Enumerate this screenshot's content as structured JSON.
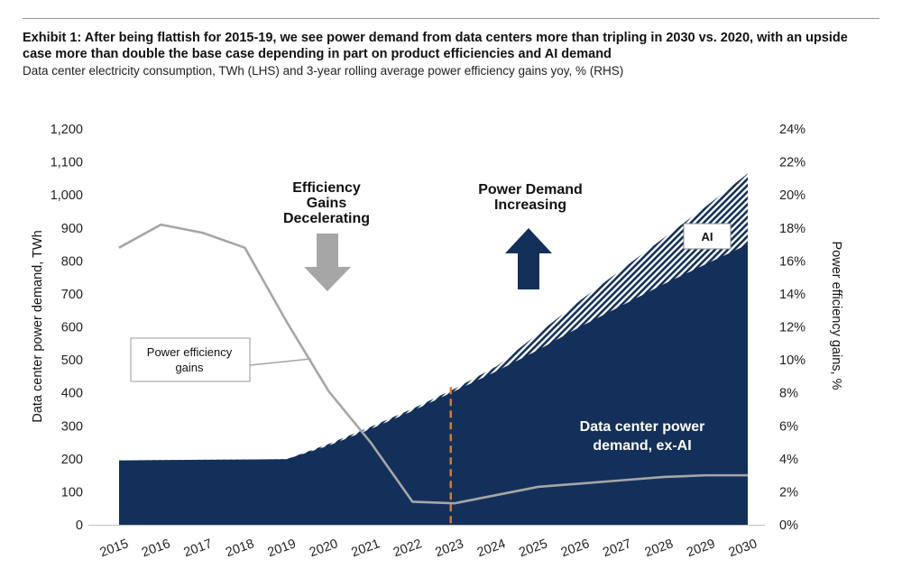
{
  "header": {
    "title": "Exhibit 1: After being flattish for 2015-19, we see power demand from data centers more than tripling in 2030 vs. 2020, with an upside case more than double the base case depending in part on product efficiencies and AI demand",
    "subtitle": "Data center electricity consumption, TWh (LHS) and 3-year rolling average power efficiency gains yoy, % (RHS)"
  },
  "colors": {
    "navy": "#13305a",
    "efficiency_line": "#a6a6a6",
    "arrow_down": "#a6a6a6",
    "arrow_up": "#13305a",
    "divider": "#e07b2a"
  },
  "chart_data": {
    "type": "area",
    "title": "Exhibit 1",
    "categories": [
      "2015",
      "2016",
      "2017",
      "2018",
      "2019",
      "2020",
      "2021",
      "2022",
      "2023",
      "2024",
      "2025",
      "2026",
      "2027",
      "2028",
      "2029",
      "2030"
    ],
    "ylabel": "Data center power demand, TWh",
    "y2label": "Power efficiency gains, %",
    "ylim": [
      0,
      1200
    ],
    "yticks": [
      0,
      100,
      200,
      300,
      400,
      500,
      600,
      700,
      800,
      900,
      1000,
      1100,
      1200
    ],
    "ytick_labels": [
      "0",
      "100",
      "200",
      "300",
      "400",
      "500",
      "600",
      "700",
      "800",
      "900",
      "1,000",
      "1,100",
      "1,200"
    ],
    "y2lim": [
      0,
      24
    ],
    "y2ticks": [
      0,
      2,
      4,
      6,
      8,
      10,
      12,
      14,
      16,
      18,
      20,
      22,
      24
    ],
    "y2tick_labels": [
      "0%",
      "2%",
      "4%",
      "6%",
      "8%",
      "10%",
      "12%",
      "14%",
      "16%",
      "18%",
      "20%",
      "22%",
      "24%"
    ],
    "series": [
      {
        "name": "Data center power demand, ex-AI",
        "axis": "left",
        "style": "solid-area",
        "values": [
          195,
          196,
          197,
          198,
          199,
          240,
          290,
          345,
          405,
          465,
          530,
          600,
          665,
          730,
          790,
          850
        ]
      },
      {
        "name": "AI",
        "axis": "left",
        "style": "hatched-area-total",
        "values": [
          195,
          196,
          197,
          198,
          199,
          245,
          297,
          352,
          412,
          480,
          580,
          680,
          775,
          870,
          965,
          1065
        ]
      },
      {
        "name": "Power efficiency gains",
        "axis": "right",
        "style": "line",
        "values": [
          16.8,
          18.2,
          17.7,
          16.8,
          12.3,
          8.1,
          5.0,
          1.4,
          1.3,
          1.8,
          2.3,
          2.5,
          2.7,
          2.9,
          3.0,
          3.0
        ]
      }
    ],
    "divider_at": "2023",
    "annotations": {
      "efficiency": [
        "Efficiency",
        "Gains",
        "Decelerating"
      ],
      "demand": [
        "Power Demand",
        "Increasing"
      ],
      "ai_label": "AI",
      "exai_label": [
        "Data center power",
        "demand, ex-AI"
      ],
      "callout": [
        "Power  efficiency",
        "gains"
      ]
    }
  }
}
